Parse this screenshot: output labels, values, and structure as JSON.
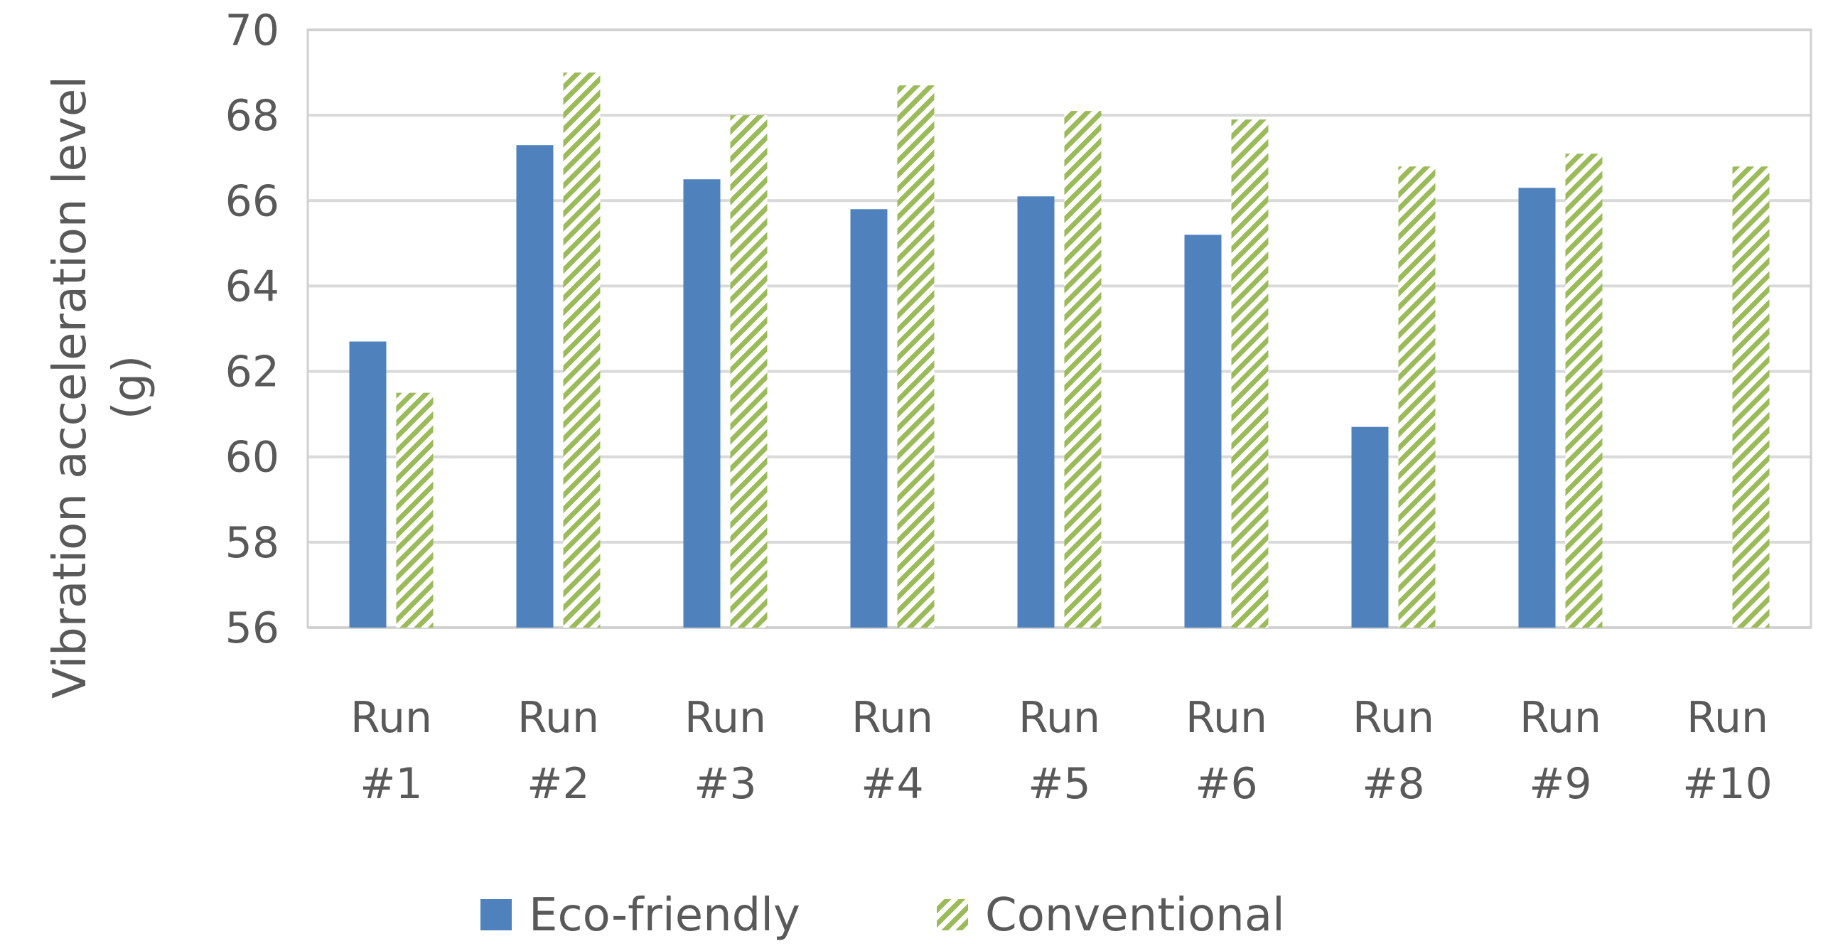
{
  "chart_data": {
    "type": "bar",
    "title": "",
    "xlabel": "",
    "ylabel_lines": [
      "Vibration acceleration level",
      "(g)"
    ],
    "ylim": [
      56,
      70
    ],
    "yticks": [
      56,
      58,
      60,
      62,
      64,
      66,
      68,
      70
    ],
    "grid": true,
    "legend_position": "bottom",
    "categories": [
      [
        "Run",
        "#1"
      ],
      [
        "Run",
        "#2"
      ],
      [
        "Run",
        "#3"
      ],
      [
        "Run",
        "#4"
      ],
      [
        "Run",
        "#5"
      ],
      [
        "Run",
        "#6"
      ],
      [
        "Run",
        "#8"
      ],
      [
        "Run",
        "#9"
      ],
      [
        "Run",
        "#10"
      ]
    ],
    "series": [
      {
        "name": "Eco-friendly",
        "color": "#4f81bd",
        "pattern": "solid",
        "values": [
          62.7,
          67.3,
          66.5,
          65.8,
          66.1,
          65.2,
          60.7,
          66.3,
          null
        ]
      },
      {
        "name": "Conventional",
        "color": "#9bbb59",
        "pattern": "diagonal-stripes",
        "values": [
          61.5,
          69.0,
          68.0,
          68.7,
          68.1,
          67.9,
          66.8,
          67.1,
          66.8
        ]
      }
    ]
  }
}
